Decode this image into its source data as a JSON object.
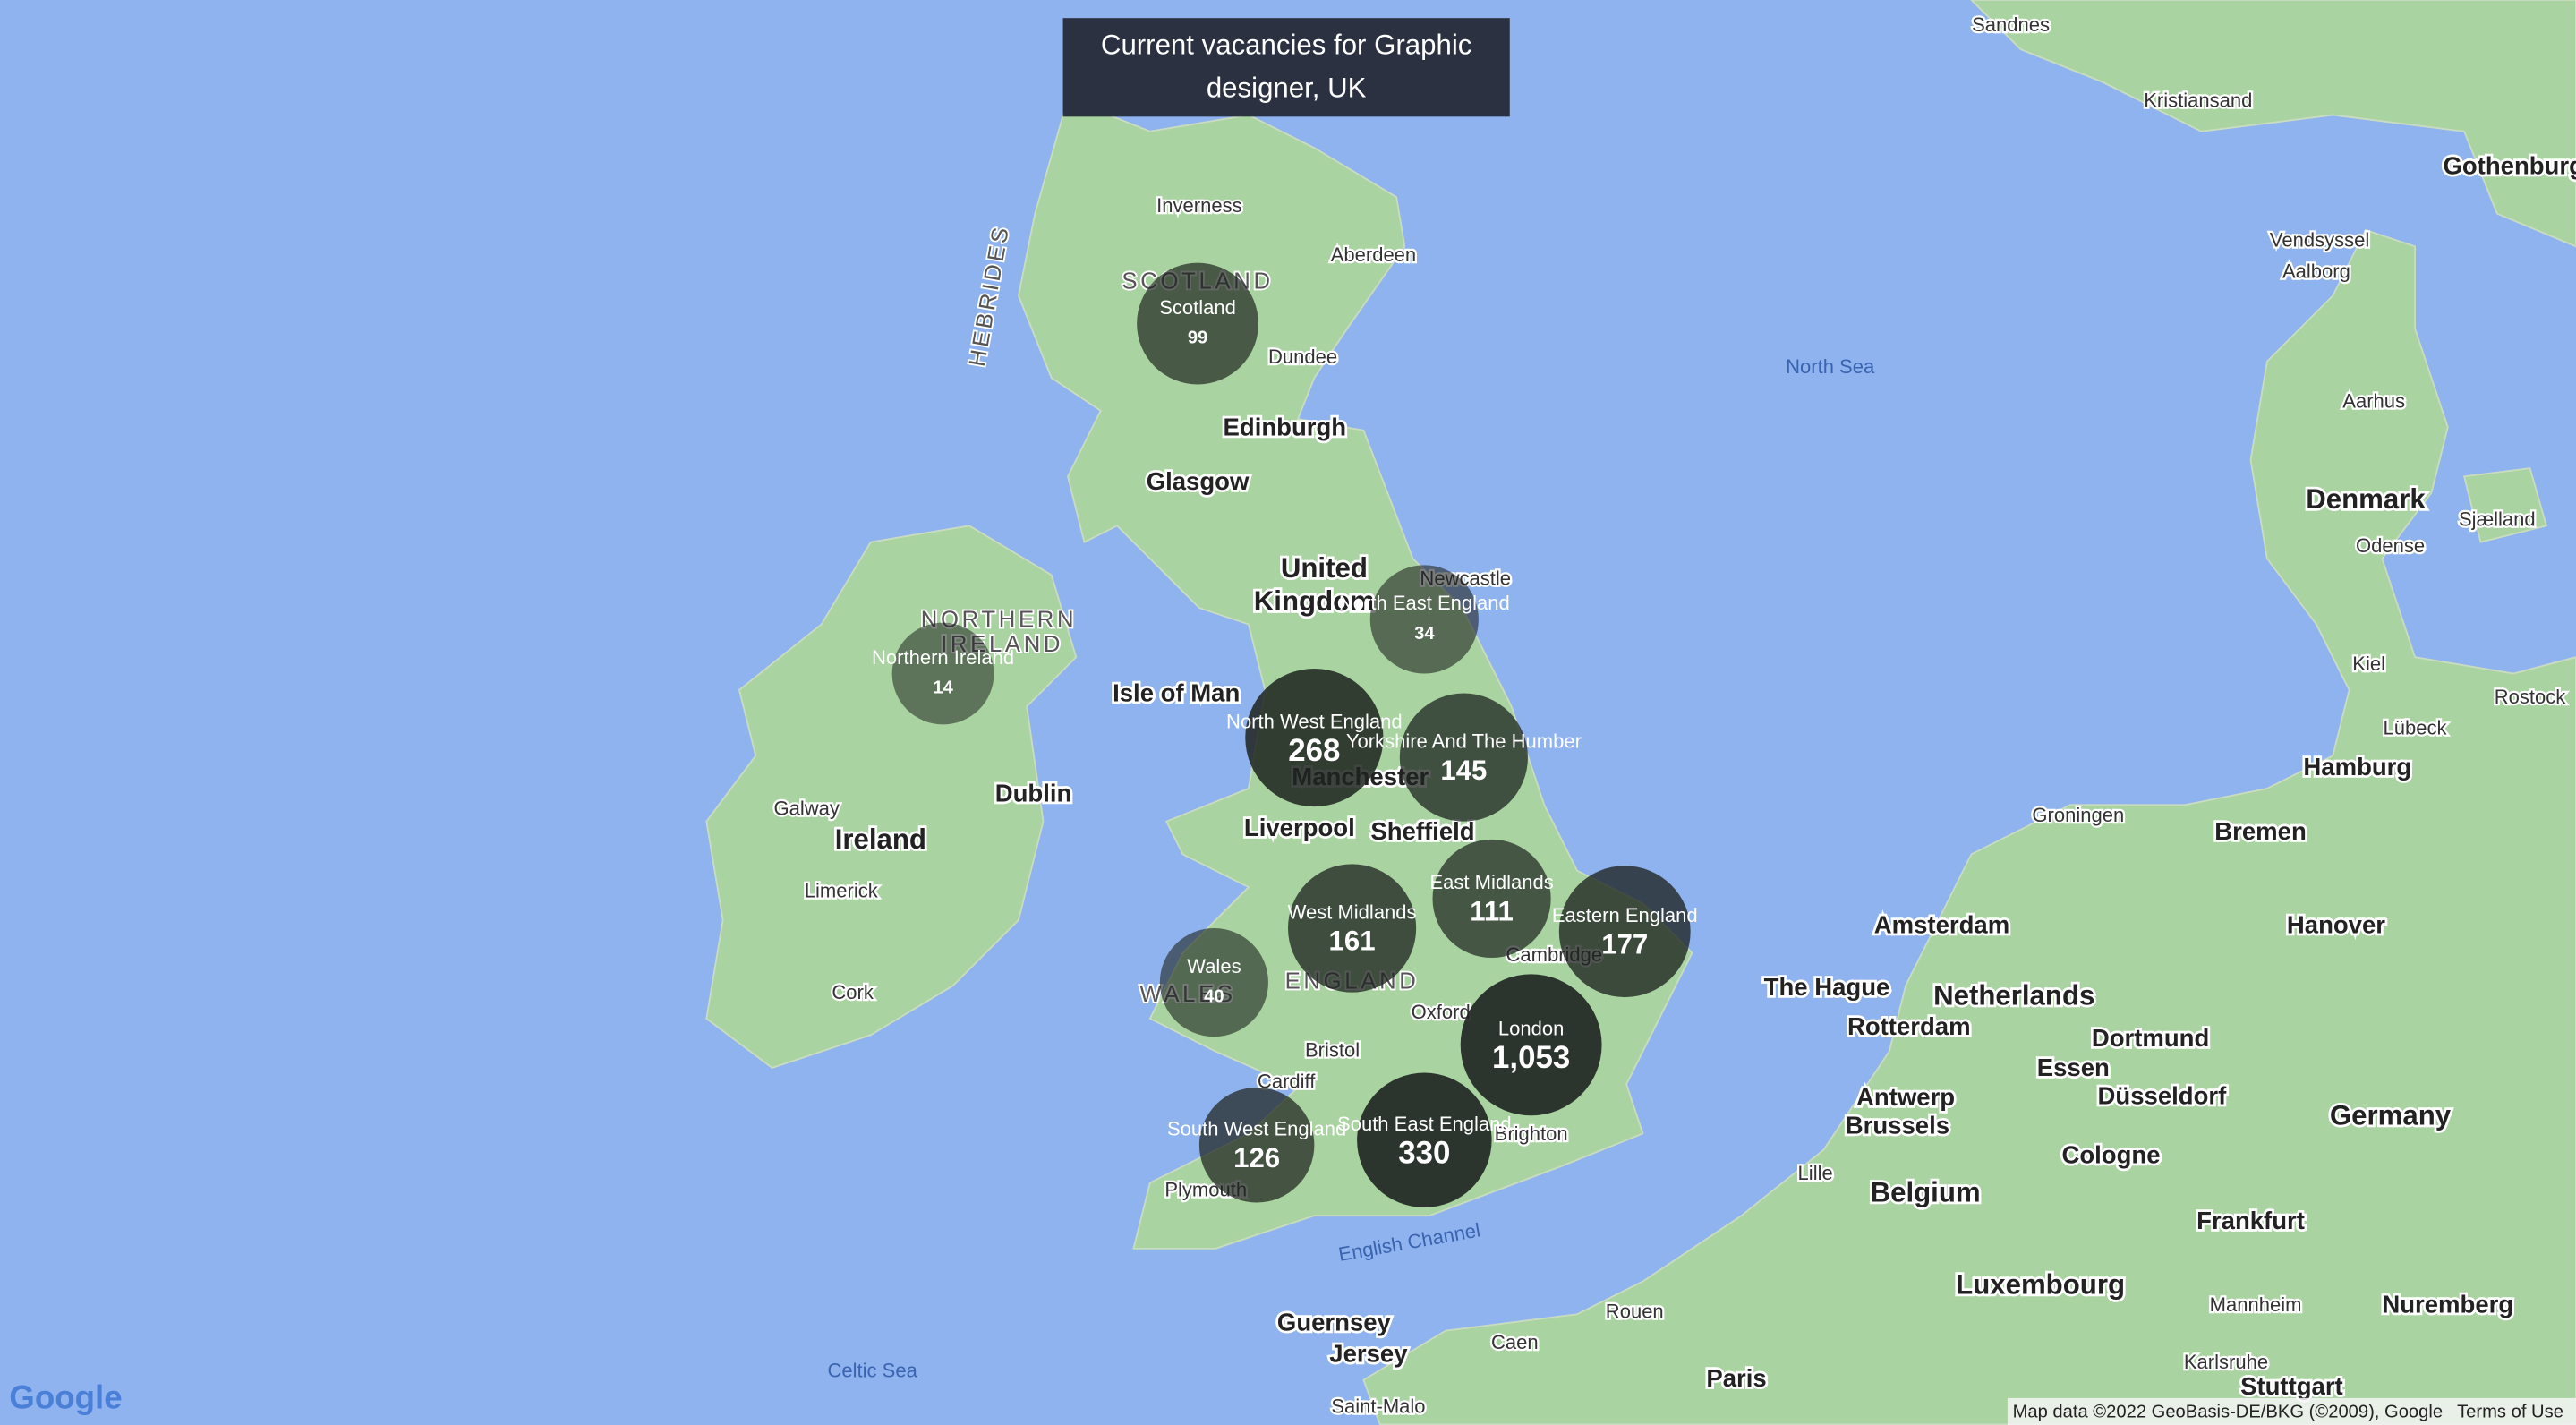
{
  "title": "Current vacancies for Graphic designer, UK",
  "regions": [
    {
      "name": "Scotland",
      "count": 99
    },
    {
      "name": "North East England",
      "count": 34
    },
    {
      "name": "Northern Ireland",
      "count": 14
    },
    {
      "name": "North West England",
      "count": 268
    },
    {
      "name": "Yorkshire And The Humber",
      "count": 145
    },
    {
      "name": "East Midlands",
      "count": 111
    },
    {
      "name": "West Midlands",
      "count": 161
    },
    {
      "name": "Eastern England",
      "count": 177
    },
    {
      "name": "Wales",
      "count": 40
    },
    {
      "name": "London",
      "count": 1053,
      "count_label": "1,053"
    },
    {
      "name": "South West England",
      "count": 126
    },
    {
      "name": "South East England",
      "count": 330
    }
  ],
  "map_labels": [
    "Sandnes",
    "Kristiansand",
    "Gothenburg",
    "Vendsyssel",
    "Aalborg",
    "Aarhus",
    "Denmark",
    "Odense",
    "Sjælland",
    "Kiel",
    "Lübeck",
    "Rostock",
    "Hamburg",
    "Bremen",
    "Groningen",
    "Hanover",
    "Amsterdam",
    "The Hague",
    "Netherlands",
    "Rotterdam",
    "Dortmund",
    "Essen",
    "Düsseldorf",
    "Antwerp",
    "Brussels",
    "Germany",
    "Cologne",
    "Belgium",
    "Lille",
    "Frankfurt",
    "Luxembourg",
    "Mannheim",
    "Nuremberg",
    "Karlsruhe",
    "Stuttgart",
    "Paris",
    "Rouen",
    "Caen",
    "Saint-Malo",
    "Guernsey",
    "Jersey",
    "Celtic Sea",
    "English Channel",
    "North Sea",
    "Brighton",
    "Plymouth",
    "Cardiff",
    "Bristol",
    "Oxford",
    "Cambridge",
    "ENGLAND",
    "WALES",
    "Liverpool",
    "Manchester",
    "Sheffield",
    "Isle of Man",
    "United",
    "Kingdom",
    "Newcastle",
    "Edinburgh",
    "Glasgow",
    "Dundee",
    "Aberdeen",
    "Inverness",
    "SCOTLAND",
    "HEBRIDES",
    "NORTHERN",
    "IRELAND",
    "Dublin",
    "Ireland",
    "Galway",
    "Limerick",
    "Cork"
  ],
  "footer": {
    "logo": "Google",
    "attribution": "Map data ©2022 GeoBasis-DE/BKG (©2009), Google",
    "terms": "Terms of Use"
  }
}
